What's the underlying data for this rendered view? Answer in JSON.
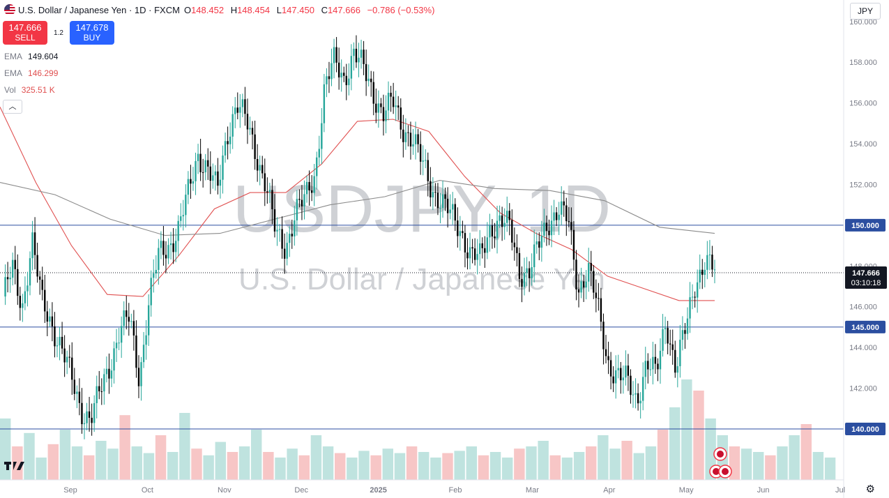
{
  "header": {
    "title": "U.S. Dollar / Japanese Yen · 1D · FXCM",
    "open_label": "O",
    "open": "148.452",
    "high_label": "H",
    "high": "148.454",
    "low_label": "L",
    "low": "147.450",
    "close_label": "C",
    "close": "147.666",
    "change": "−0.786 (−0.53%)"
  },
  "trade": {
    "sell_price": "147.666",
    "sell_label": "SELL",
    "spread": "1.2",
    "buy_price": "147.678",
    "buy_label": "BUY"
  },
  "indicators": [
    {
      "name": "EMA",
      "value": "149.604"
    },
    {
      "name": "EMA",
      "value": "146.299"
    },
    {
      "name": "Vol",
      "value": "325.51 K"
    }
  ],
  "currency_button": "JPY",
  "watermark": {
    "symbol": "USDJPY, 1D",
    "description": "U.S. Dollar / Japanese Yen"
  },
  "colors": {
    "up": "#26a69a",
    "down": "#000000",
    "ema_fast": "#e05050",
    "ema_slow": "#8a8a8a",
    "hline": "#2b4ea0",
    "price_label": "#131722",
    "accent": "#2962ff"
  },
  "chart_data": {
    "type": "candlestick",
    "y_axis": {
      "ylim": [
        137.5,
        160.3
      ],
      "ticks": [
        "140.000",
        "142.000",
        "144.000",
        "146.000",
        "148.000",
        "150.000",
        "152.000",
        "154.000",
        "156.000",
        "158.000",
        "160.000"
      ]
    },
    "x_axis": {
      "labels": [
        "Sep",
        "Oct",
        "Nov",
        "Dec",
        "2025",
        "Feb",
        "Mar",
        "Apr",
        "May",
        "Jun",
        "Jul"
      ]
    },
    "horizontal_lines": [
      150.0,
      145.0,
      140.0
    ],
    "level_labels": [
      "150.000",
      "145.000",
      "140.000"
    ],
    "current_price": {
      "value": "147.666",
      "countdown": "03:10:18"
    },
    "price_path": [
      146.5,
      147.8,
      146.0,
      149.3,
      146.2,
      145.2,
      144.0,
      142.5,
      141.0,
      140.5,
      141.8,
      143.2,
      144.9,
      145.4,
      142.5,
      146.4,
      148.5,
      149.0,
      149.8,
      151.5,
      153.5,
      152.8,
      151.6,
      154.5,
      156.0,
      155.0,
      153.5,
      152.0,
      149.5,
      148.9,
      150.7,
      151.2,
      152.5,
      156.8,
      158.0,
      157.2,
      158.5,
      157.6,
      156.5,
      155.5,
      156.0,
      154.8,
      154.3,
      153.0,
      151.8,
      151.2,
      150.4,
      149.7,
      148.6,
      148.3,
      149.9,
      150.3,
      149.8,
      147.7,
      147.8,
      149.0,
      150.2,
      150.9,
      150.1,
      146.8,
      148.0,
      145.9,
      143.3,
      142.7,
      142.3,
      141.4,
      143.3,
      142.6,
      145.4,
      143.0,
      144.8,
      147.2,
      148.3,
      147.7
    ],
    "ema_fast": [
      155.8,
      152.1,
      149.0,
      146.6,
      146.5,
      148.5,
      150.8,
      151.6,
      151.6,
      153.0,
      155.1,
      155.2,
      154.6,
      152.4,
      150.6,
      149.6,
      148.8,
      147.5,
      146.9,
      146.3,
      146.3
    ],
    "ema_slow": [
      152.1,
      151.5,
      150.3,
      149.5,
      149.6,
      150.3,
      151.0,
      151.4,
      152.2,
      151.8,
      151.7,
      151.2,
      149.9,
      149.6
    ],
    "volume": [
      0.55,
      0.3,
      0.42,
      0.2,
      0.32,
      0.45,
      0.3,
      0.22,
      0.35,
      0.28,
      0.58,
      0.3,
      0.24,
      0.4,
      0.25,
      0.6,
      0.28,
      0.22,
      0.34,
      0.25,
      0.3,
      0.45,
      0.25,
      0.2,
      0.28,
      0.22,
      0.4,
      0.3,
      0.24,
      0.2,
      0.26,
      0.22,
      0.28,
      0.24,
      0.3,
      0.25,
      0.2,
      0.24,
      0.26,
      0.3,
      0.22,
      0.25,
      0.2,
      0.28,
      0.3,
      0.35,
      0.22,
      0.2,
      0.25,
      0.3,
      0.4,
      0.28,
      0.35,
      0.24,
      0.3,
      0.45,
      0.65,
      0.9,
      0.8,
      0.55,
      0.4,
      0.3,
      0.28,
      0.25,
      0.22,
      0.3,
      0.4,
      0.5,
      0.25,
      0.2
    ]
  }
}
